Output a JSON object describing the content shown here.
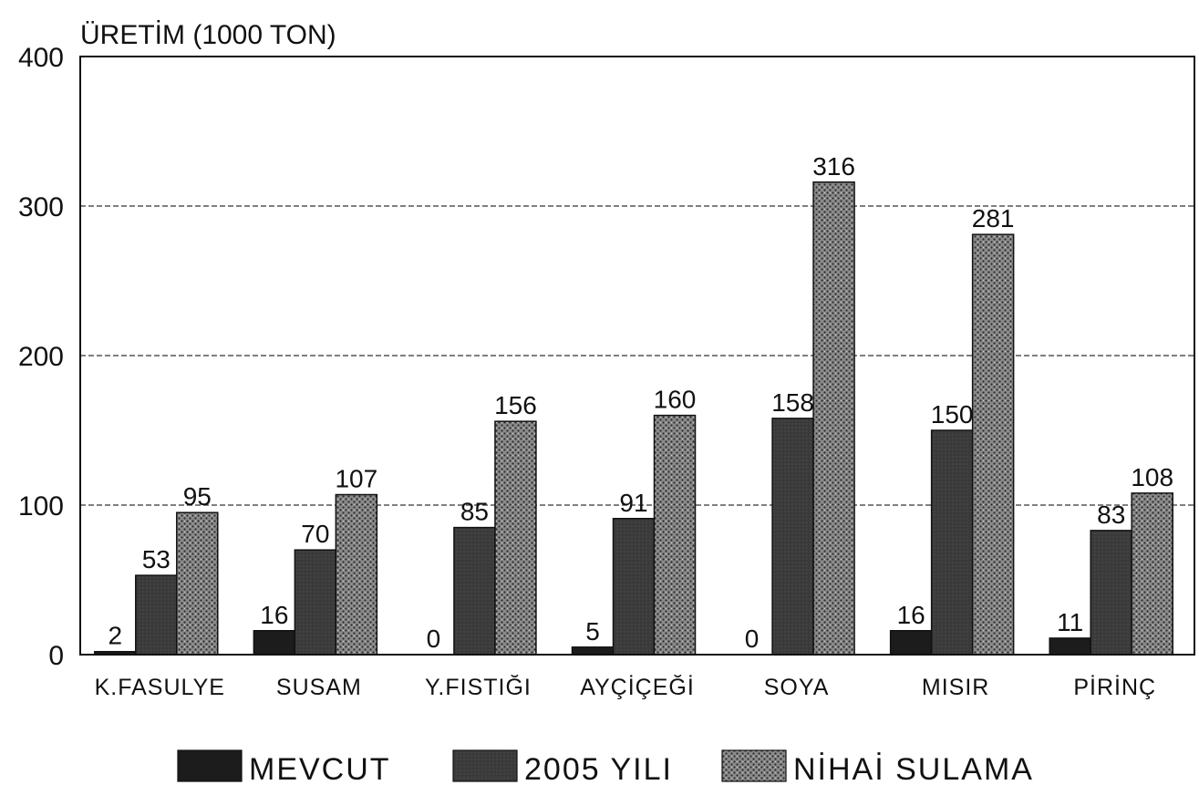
{
  "chart_data": {
    "type": "bar",
    "ylabel": "ÜRETİM (1000 TON)",
    "ylim": [
      0,
      400
    ],
    "yticks": [
      0,
      100,
      200,
      300,
      400
    ],
    "grid": "horizontal-dashed",
    "legend_position": "bottom",
    "categories": [
      "K.FASULYE",
      "SUSAM",
      "Y.FISTIĞI",
      "AYÇİÇEĞİ",
      "SOYA",
      "MISIR",
      "PİRİNÇ"
    ],
    "series": [
      {
        "name": "MEVCUT",
        "values": [
          2,
          16,
          0,
          5,
          0,
          16,
          11
        ],
        "color": "#1c1c1c"
      },
      {
        "name": "2005 YILI",
        "values": [
          53,
          70,
          85,
          91,
          158,
          150,
          83
        ],
        "color": "#3a3a3a"
      },
      {
        "name": "NİHAİ SULAMA",
        "values": [
          95,
          107,
          156,
          160,
          316,
          281,
          108
        ],
        "color": "#6e6e6e"
      }
    ]
  }
}
